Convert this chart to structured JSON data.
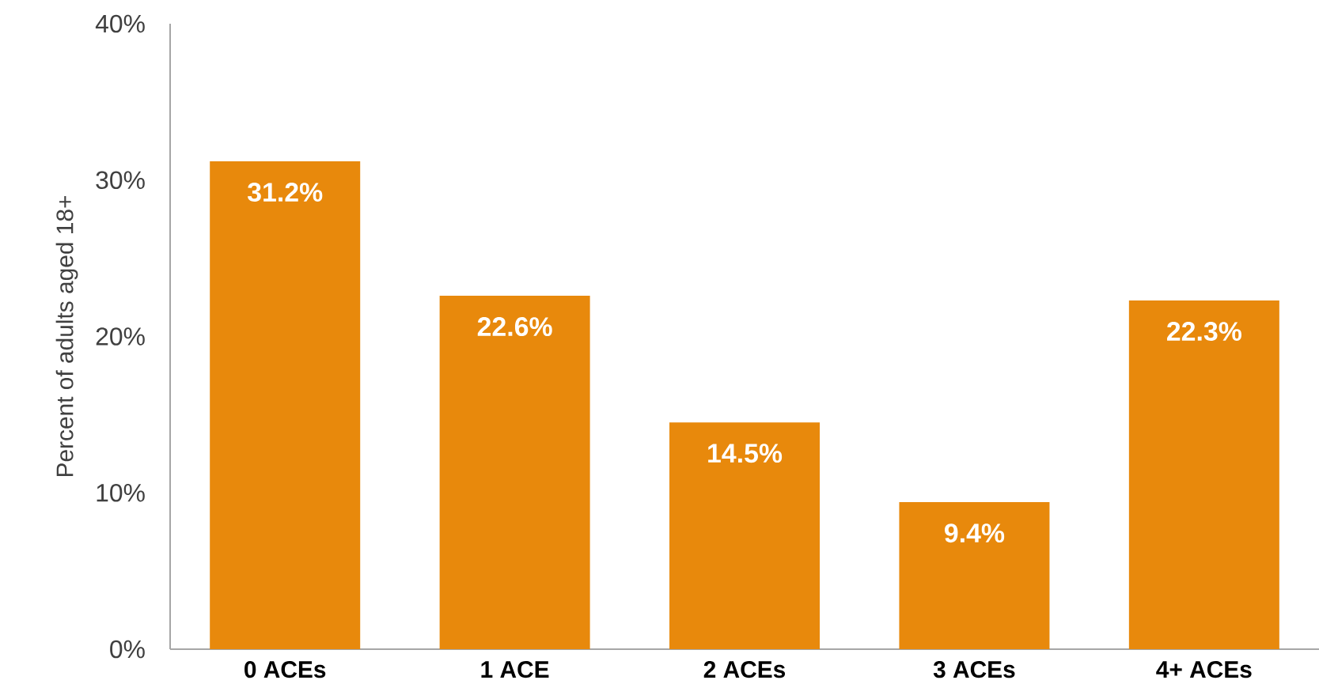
{
  "chart_data": {
    "type": "bar",
    "ylabel": "Percent of adults aged 18+",
    "categories": [
      "0 ACEs",
      "1 ACE",
      "2 ACEs",
      "3 ACEs",
      "4+ ACEs"
    ],
    "values": [
      31.2,
      22.6,
      14.5,
      9.4,
      22.3
    ],
    "value_labels": [
      "31.2%",
      "22.6%",
      "14.5%",
      "9.4%",
      "22.3%"
    ],
    "color": "#e8890c",
    "ylim": [
      0,
      40
    ],
    "yticks": [
      {
        "value": 0,
        "label": "0%"
      },
      {
        "value": 10,
        "label": "10%"
      },
      {
        "value": 20,
        "label": "20%"
      },
      {
        "value": 30,
        "label": "30%"
      },
      {
        "value": 40,
        "label": "40%"
      }
    ],
    "grid": false
  }
}
